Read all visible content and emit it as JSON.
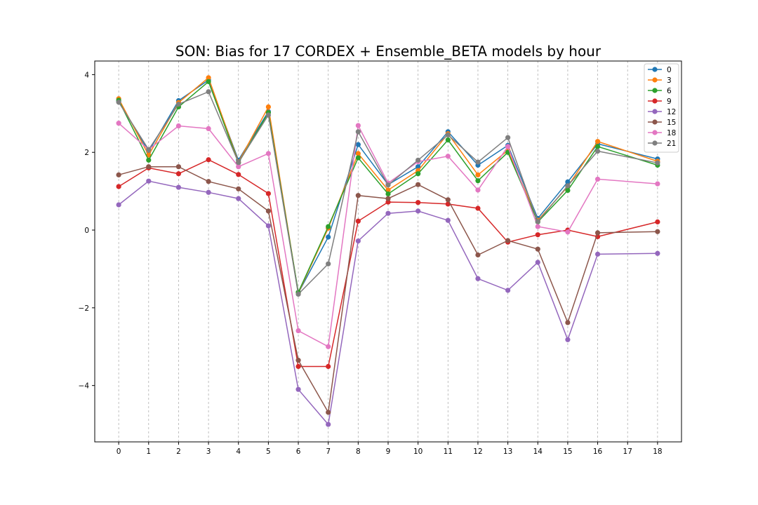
{
  "chart_data": {
    "type": "line",
    "title": "SON: Bias for 17 CORDEX + Ensemble_BETA models by hour",
    "xlabel": "",
    "ylabel": "",
    "x": [
      0,
      1,
      2,
      3,
      4,
      5,
      6,
      7,
      8,
      9,
      10,
      11,
      12,
      13,
      14,
      15,
      16,
      17,
      18
    ],
    "x_tick_labels": [
      "0",
      "1",
      "2",
      "3",
      "4",
      "5",
      "6",
      "7",
      "8",
      "9",
      "10",
      "11",
      "12",
      "13",
      "14",
      "15",
      "16",
      "17",
      "18"
    ],
    "y_ticks": [
      4,
      2,
      0,
      -2,
      -4
    ],
    "y_tick_labels": [
      "4",
      "2",
      "0",
      "−2",
      "−4"
    ],
    "xlim": [
      -0.8,
      18.8
    ],
    "ylim": [
      -5.45,
      4.35
    ],
    "grid": "vertical dashed",
    "legend_position": "top-right",
    "series": [
      {
        "name": "0",
        "color": "#1f77b4",
        "x": [
          0,
          1,
          2,
          3,
          4,
          5,
          6,
          7,
          8,
          9,
          10,
          11,
          12,
          13,
          14,
          15,
          16,
          18
        ],
        "values": [
          3.32,
          2.02,
          3.33,
          3.86,
          1.8,
          3.05,
          -1.62,
          -0.18,
          2.2,
          1.17,
          1.63,
          2.53,
          1.67,
          2.18,
          0.3,
          1.24,
          2.22,
          1.83
        ]
      },
      {
        "name": "3",
        "color": "#ff7f0e",
        "x": [
          0,
          1,
          2,
          3,
          4,
          5,
          6,
          7,
          8,
          9,
          10,
          11,
          12,
          13,
          14,
          15,
          16,
          18
        ],
        "values": [
          3.38,
          1.93,
          3.28,
          3.92,
          1.75,
          3.17,
          -1.62,
          0.05,
          1.97,
          1.03,
          1.53,
          2.48,
          1.42,
          2.05,
          0.25,
          1.12,
          2.28,
          1.77
        ]
      },
      {
        "name": "6",
        "color": "#2ca02c",
        "x": [
          0,
          1,
          2,
          3,
          4,
          5,
          6,
          7,
          8,
          9,
          10,
          11,
          12,
          13,
          14,
          15,
          16,
          18
        ],
        "values": [
          3.34,
          1.8,
          3.17,
          3.82,
          1.73,
          3.02,
          -1.6,
          0.09,
          1.86,
          0.93,
          1.45,
          2.32,
          1.27,
          2.0,
          0.21,
          1.02,
          2.15,
          1.67
        ]
      },
      {
        "name": "9",
        "color": "#d62728",
        "x": [
          0,
          1,
          2,
          3,
          4,
          5,
          6,
          7,
          8,
          9,
          10,
          11,
          12,
          13,
          14,
          15,
          16,
          18
        ],
        "values": [
          1.12,
          1.6,
          1.45,
          1.81,
          1.43,
          0.94,
          -3.51,
          -3.51,
          0.23,
          0.72,
          0.71,
          0.67,
          0.56,
          -0.31,
          -0.12,
          0.0,
          -0.17,
          0.21
        ]
      },
      {
        "name": "12",
        "color": "#9467bd",
        "x": [
          0,
          1,
          2,
          3,
          4,
          5,
          6,
          7,
          8,
          9,
          10,
          11,
          12,
          13,
          14,
          15,
          16,
          18
        ],
        "values": [
          0.65,
          1.26,
          1.1,
          0.97,
          0.81,
          0.11,
          -4.1,
          -5.0,
          -0.28,
          0.43,
          0.49,
          0.25,
          -1.25,
          -1.55,
          -0.83,
          -2.82,
          -0.62,
          -0.6
        ]
      },
      {
        "name": "15",
        "color": "#8c564b",
        "x": [
          0,
          1,
          2,
          3,
          4,
          5,
          6,
          7,
          8,
          9,
          10,
          11,
          12,
          13,
          14,
          15,
          16,
          18
        ],
        "values": [
          1.42,
          1.63,
          1.63,
          1.25,
          1.06,
          0.49,
          -3.35,
          -4.69,
          0.89,
          0.81,
          1.17,
          0.78,
          -0.64,
          -0.27,
          -0.49,
          -2.38,
          -0.07,
          -0.04
        ]
      },
      {
        "name": "18",
        "color": "#e377c2",
        "x": [
          0,
          1,
          2,
          3,
          4,
          5,
          6,
          7,
          8,
          9,
          10,
          11,
          12,
          13,
          14,
          15,
          16,
          18
        ],
        "values": [
          2.75,
          2.07,
          2.68,
          2.61,
          1.63,
          1.97,
          -2.59,
          -3.0,
          2.69,
          1.21,
          1.76,
          1.9,
          1.03,
          2.15,
          0.09,
          -0.05,
          1.31,
          1.19
        ]
      },
      {
        "name": "21",
        "color": "#7f7f7f",
        "x": [
          0,
          1,
          2,
          3,
          4,
          5,
          6,
          7,
          8,
          9,
          10,
          11,
          12,
          13,
          14,
          15,
          16,
          18
        ],
        "values": [
          3.29,
          2.07,
          3.24,
          3.56,
          1.74,
          2.96,
          -1.65,
          -0.87,
          2.53,
          1.16,
          1.8,
          2.45,
          1.75,
          2.38,
          0.22,
          1.14,
          2.03,
          1.73
        ]
      }
    ]
  }
}
